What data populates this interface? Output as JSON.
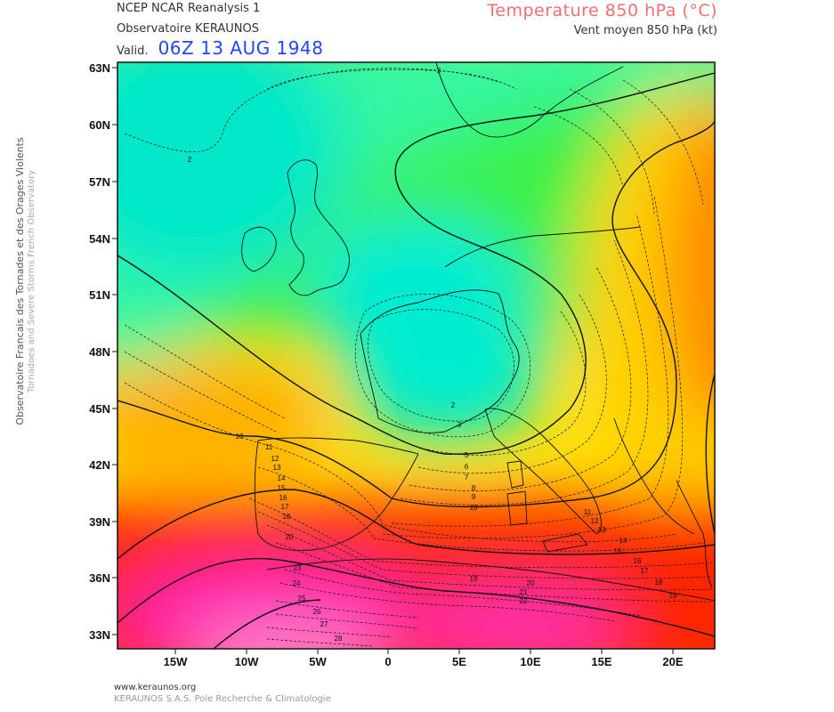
{
  "header": {
    "source_line1": "NCEP NCAR Reanalysis 1",
    "source_line2": "Observatoire KERAUNOS",
    "valid_label": "Valid.",
    "valid_date": "06Z 13 AUG 1948",
    "title": "Temperature 850 hPa (°C)",
    "subtitle": "Vent moyen 850 hPa (kt)"
  },
  "side_text": {
    "line1": "Observatoire Francais des Tornades et des Orages Violents",
    "line2": "Tornadoes and Severe Storms French Observatory"
  },
  "footer": {
    "line1": "www.keraunos.org",
    "line2": "KERAUNOS S.A.S. Pole Recherche & Climatologie"
  },
  "map": {
    "lat_labels": [
      "63N",
      "60N",
      "57N",
      "54N",
      "51N",
      "48N",
      "45N",
      "42N",
      "39N",
      "36N",
      "33N"
    ],
    "lon_labels": [
      "15W",
      "10W",
      "5W",
      "0",
      "5E",
      "10E",
      "15E",
      "20E"
    ],
    "contour_labels_bold": [
      "10",
      "10",
      "15",
      "15",
      "20",
      "25"
    ],
    "contour_labels_thin": [
      "2",
      "2",
      "3",
      "3",
      "5",
      "6",
      "7",
      "8",
      "9",
      "11",
      "12",
      "13",
      "14",
      "16",
      "17",
      "18",
      "19",
      "11",
      "12",
      "13",
      "14",
      "16",
      "17",
      "18",
      "19",
      "20",
      "21",
      "22",
      "23",
      "24",
      "26",
      "27",
      "28"
    ],
    "colors": {
      "cold": "#00e6c8",
      "green": "#00d200",
      "yellow": "#ffdc00",
      "orange": "#ff8c00",
      "red": "#ff2800",
      "magenta": "#ff20b0",
      "pink": "#ff80d0"
    }
  }
}
